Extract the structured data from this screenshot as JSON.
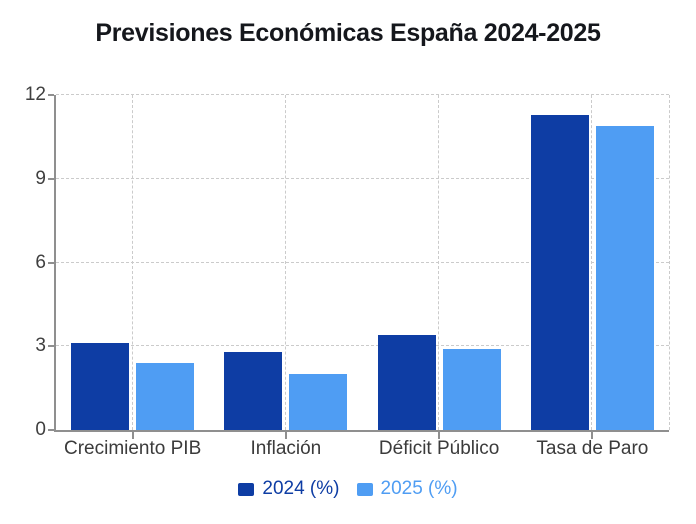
{
  "title": "Previsiones Económicas España 2024-2025",
  "chart_data": {
    "type": "bar",
    "title": "Previsiones Económicas España 2024-2025",
    "categories": [
      "Crecimiento PIB",
      "Inflación",
      "Déficit Público",
      "Tasa de Paro"
    ],
    "series": [
      {
        "name": "2024 (%)",
        "color": "#0e3da4",
        "values": [
          3.1,
          2.8,
          3.4,
          11.3
        ]
      },
      {
        "name": "2025 (%)",
        "color": "#4f9df3",
        "values": [
          2.4,
          2.0,
          2.9,
          10.9
        ]
      }
    ],
    "xlabel": "",
    "ylabel": "",
    "ylim": [
      0,
      12
    ],
    "yticks": [
      0,
      3,
      6,
      9,
      12
    ],
    "grid": {
      "horizontal": "dashed",
      "vertical": "dashed-at-category-centers-and-right-edge",
      "color": "#cbcbcb"
    },
    "axis_color": "#8f8f8f",
    "tick_label_color": "#3f3f3f",
    "legend_position": "bottom-center"
  }
}
